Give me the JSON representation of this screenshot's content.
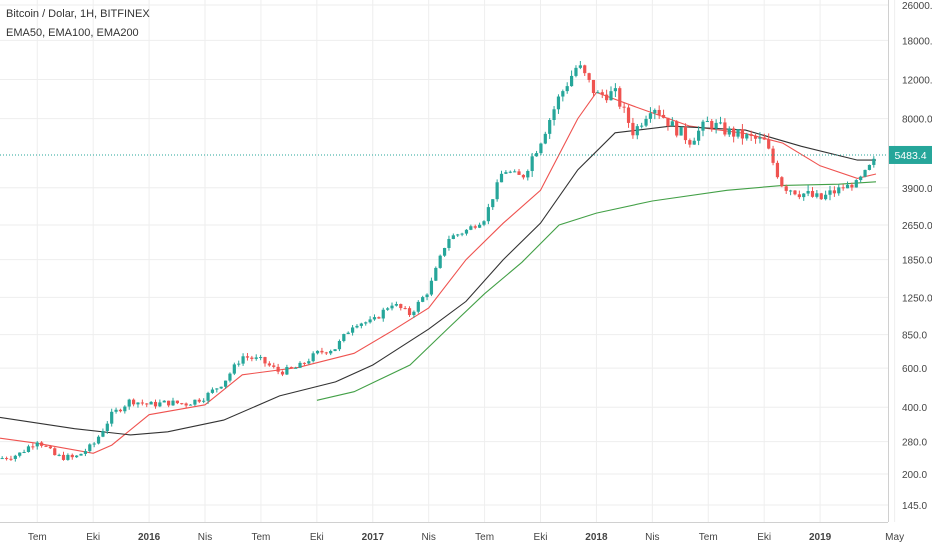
{
  "legend": {
    "title": "Bitcoin / Dolar, 1H, BITFINEX",
    "indicators": "EMA50, EMA100, EMA200"
  },
  "chart_data": {
    "type": "candlestick",
    "scale": "log",
    "ylim": [
      125,
      26000
    ],
    "y_ticks": [
      "145.0",
      "200.0",
      "280.0",
      "400.0",
      "600.0",
      "850.0",
      "1250.0",
      "1850.0",
      "2650.0",
      "3900.0",
      "8000.0",
      "12000.0",
      "18000.0",
      "26000.0"
    ],
    "x_ticks": [
      "Tem",
      "Eki",
      "2016",
      "Nis",
      "Tem",
      "Eki",
      "2017",
      "Nis",
      "Tem",
      "Eki",
      "2018",
      "Nis",
      "Tem",
      "Eki",
      "2019",
      "May"
    ],
    "x_start": "2015-05",
    "x_end": "2019-05",
    "current_price": 5483.4,
    "current_price_label": "5483.4",
    "colors": {
      "up": "#26a69a",
      "down": "#ef5350",
      "ema50": "#ef5350",
      "ema100": "#333333",
      "ema200": "#43a047",
      "price_line": "#26a69a",
      "grid": "#eeeeee"
    },
    "series": [
      {
        "name": "EMA50",
        "color": "#ef5350",
        "points": [
          [
            "2015-05",
            290
          ],
          [
            "2015-07",
            275
          ],
          [
            "2015-10",
            248
          ],
          [
            "2015-11",
            270
          ],
          [
            "2016-01",
            370
          ],
          [
            "2016-04",
            410
          ],
          [
            "2016-06",
            560
          ],
          [
            "2016-09",
            605
          ],
          [
            "2016-12",
            700
          ],
          [
            "2017-02",
            880
          ],
          [
            "2017-04",
            1120
          ],
          [
            "2017-06",
            1850
          ],
          [
            "2017-08",
            2700
          ],
          [
            "2017-10",
            3800
          ],
          [
            "2017-12",
            8000
          ],
          [
            "2018-01",
            10500
          ],
          [
            "2018-03",
            9100
          ],
          [
            "2018-06",
            7400
          ],
          [
            "2018-09",
            6850
          ],
          [
            "2018-11",
            6200
          ],
          [
            "2019-01",
            4900
          ],
          [
            "2019-03",
            4300
          ],
          [
            "2019-04",
            4500
          ]
        ]
      },
      {
        "name": "EMA100",
        "color": "#333333",
        "points": [
          [
            "2015-05",
            360
          ],
          [
            "2015-09",
            320
          ],
          [
            "2015-12",
            300
          ],
          [
            "2016-02",
            310
          ],
          [
            "2016-05",
            350
          ],
          [
            "2016-08",
            450
          ],
          [
            "2016-11",
            520
          ],
          [
            "2017-01",
            620
          ],
          [
            "2017-04",
            900
          ],
          [
            "2017-06",
            1200
          ],
          [
            "2017-08",
            1850
          ],
          [
            "2017-10",
            2700
          ],
          [
            "2017-12",
            4700
          ],
          [
            "2018-02",
            6900
          ],
          [
            "2018-05",
            7400
          ],
          [
            "2018-09",
            7100
          ],
          [
            "2018-12",
            6000
          ],
          [
            "2019-03",
            5200
          ],
          [
            "2019-04",
            5200
          ]
        ]
      },
      {
        "name": "EMA200",
        "color": "#43a047",
        "points": [
          [
            "2016-10",
            430
          ],
          [
            "2016-12",
            470
          ],
          [
            "2017-03",
            620
          ],
          [
            "2017-05",
            900
          ],
          [
            "2017-07",
            1300
          ],
          [
            "2017-09",
            1800
          ],
          [
            "2017-11",
            2650
          ],
          [
            "2018-01",
            3000
          ],
          [
            "2018-04",
            3400
          ],
          [
            "2018-08",
            3800
          ],
          [
            "2018-11",
            4000
          ],
          [
            "2019-02",
            4050
          ],
          [
            "2019-04",
            4150
          ]
        ]
      }
    ],
    "price_path": [
      [
        "2015-05",
        235
      ],
      [
        "2015-06",
        245
      ],
      [
        "2015-07",
        285
      ],
      [
        "2015-08",
        240
      ],
      [
        "2015-09",
        236
      ],
      [
        "2015-10",
        270
      ],
      [
        "2015-11",
        370
      ],
      [
        "2015-12",
        430
      ],
      [
        "2016-01",
        410
      ],
      [
        "2016-02",
        420
      ],
      [
        "2016-03",
        415
      ],
      [
        "2016-04",
        445
      ],
      [
        "2016-05",
        520
      ],
      [
        "2016-06",
        680
      ],
      [
        "2016-07",
        650
      ],
      [
        "2016-08",
        575
      ],
      [
        "2016-09",
        605
      ],
      [
        "2016-10",
        700
      ],
      [
        "2016-11",
        740
      ],
      [
        "2016-12",
        960
      ],
      [
        "2017-01",
        970
      ],
      [
        "2017-02",
        1180
      ],
      [
        "2017-03",
        1050
      ],
      [
        "2017-04",
        1350
      ],
      [
        "2017-05",
        2300
      ],
      [
        "2017-06",
        2500
      ],
      [
        "2017-07",
        2850
      ],
      [
        "2017-08",
        4700
      ],
      [
        "2017-09",
        4350
      ],
      [
        "2017-10",
        6400
      ],
      [
        "2017-11",
        10000
      ],
      [
        "2017-12",
        14000
      ],
      [
        "2018-01",
        10200
      ],
      [
        "2018-02",
        10400
      ],
      [
        "2018-03",
        6900
      ],
      [
        "2018-04",
        9300
      ],
      [
        "2018-05",
        7500
      ],
      [
        "2018-06",
        6400
      ],
      [
        "2018-07",
        7700
      ],
      [
        "2018-08",
        7000
      ],
      [
        "2018-09",
        6600
      ],
      [
        "2018-10",
        6300
      ],
      [
        "2018-11",
        4000
      ],
      [
        "2018-12",
        3700
      ],
      [
        "2019-01",
        3450
      ],
      [
        "2019-02",
        3850
      ],
      [
        "2019-03",
        4100
      ],
      [
        "2019-04",
        5300
      ]
    ]
  }
}
